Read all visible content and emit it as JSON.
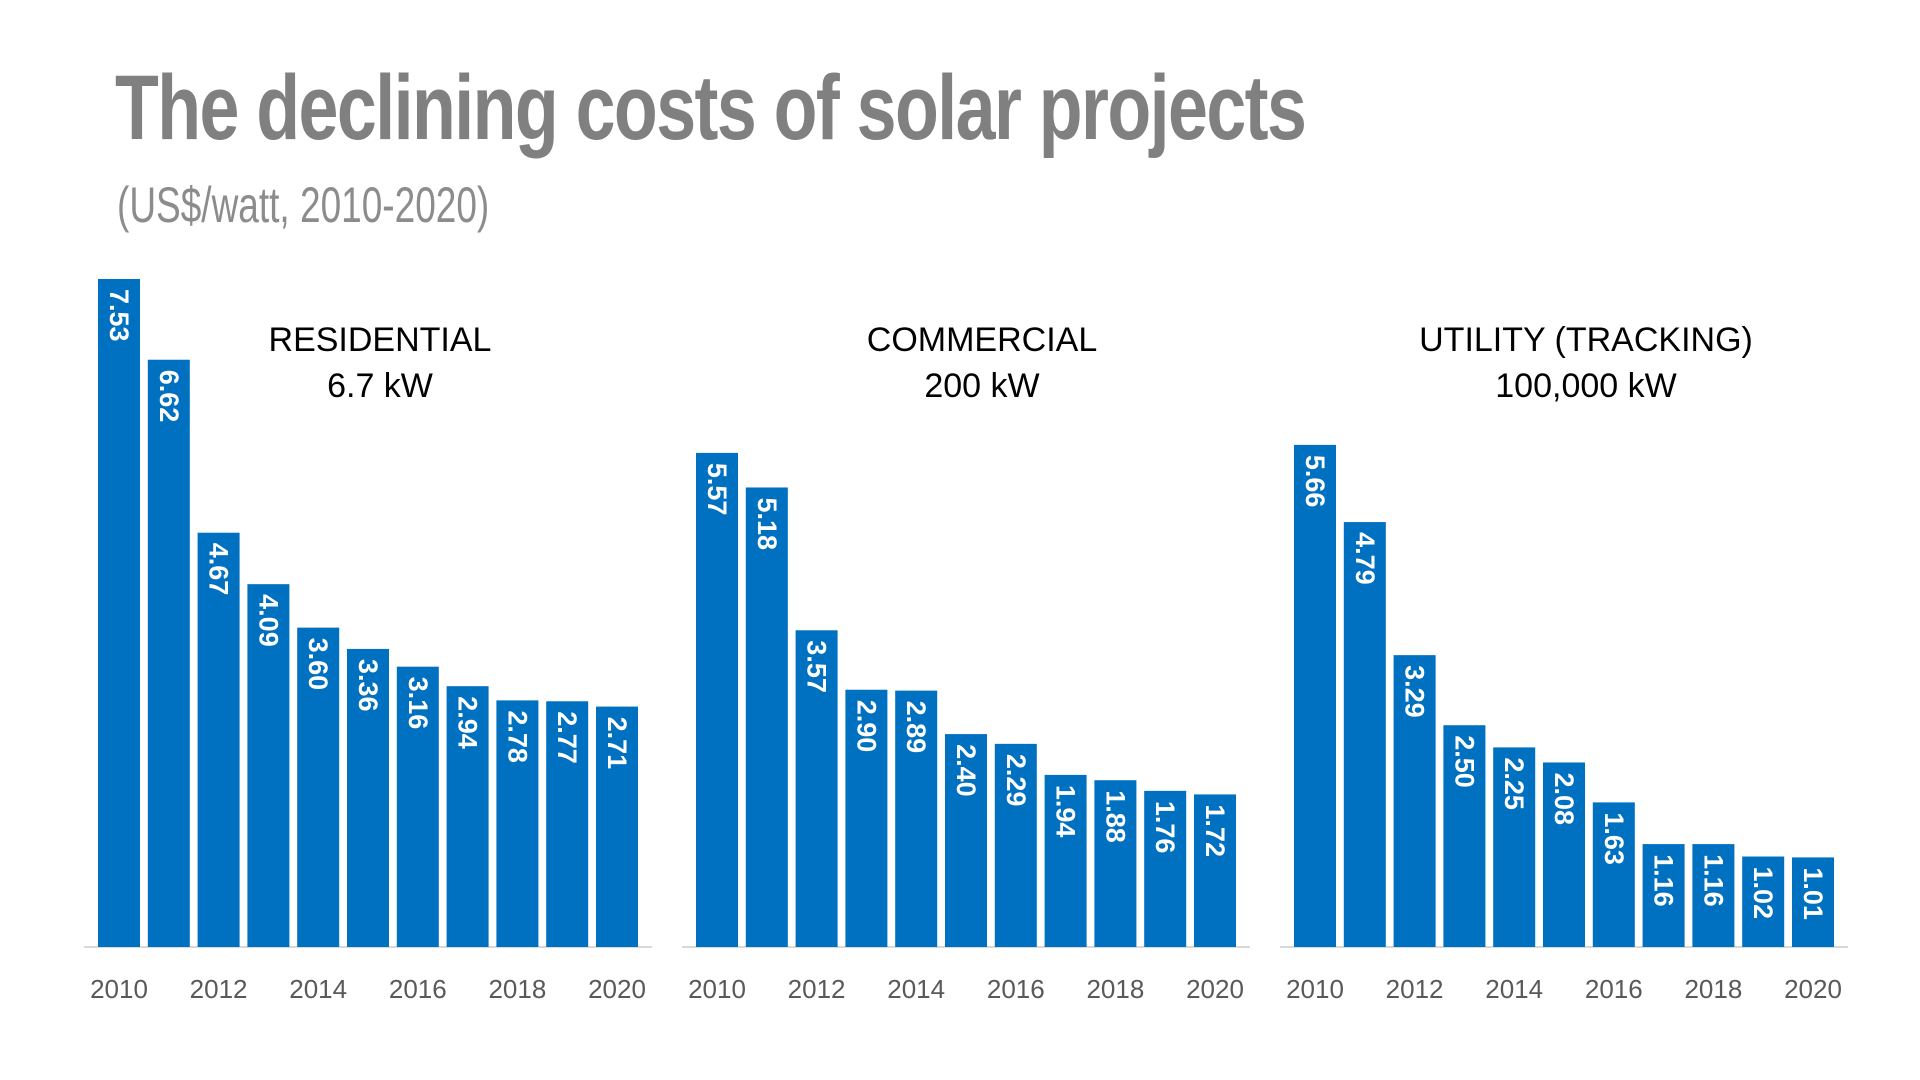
{
  "title": "The declining costs of solar projects",
  "subtitle": "(US$/watt, 2010-2020)",
  "colors": {
    "bar": "#0070C0",
    "bar_label": "#ffffff",
    "axis": "#d9d9d9",
    "tick": "#595959",
    "group_label": "#000000"
  },
  "chart_data": [
    {
      "type": "bar",
      "title": "RESIDENTIAL",
      "subtitle": "6.7 kW",
      "categories": [
        "2010",
        "2011",
        "2012",
        "2013",
        "2014",
        "2015",
        "2016",
        "2017",
        "2018",
        "2019",
        "2020"
      ],
      "values": [
        7.53,
        6.62,
        4.67,
        4.09,
        3.6,
        3.36,
        3.16,
        2.94,
        2.78,
        2.77,
        2.71
      ],
      "value_labels": [
        "7.53",
        "6.62",
        "4.67",
        "4.09",
        "3.60",
        "3.36",
        "3.16",
        "2.94",
        "2.78",
        "2.77",
        "2.71"
      ],
      "tick_labels": [
        "2010",
        "2012",
        "2014",
        "2016",
        "2018",
        "2020"
      ],
      "xlabel": "",
      "ylabel": "",
      "ylim": [
        0,
        7.53
      ],
      "grid": false
    },
    {
      "type": "bar",
      "title": "COMMERCIAL",
      "subtitle": "200 kW",
      "categories": [
        "2010",
        "2011",
        "2012",
        "2013",
        "2014",
        "2015",
        "2016",
        "2017",
        "2018",
        "2019",
        "2020"
      ],
      "values": [
        5.57,
        5.18,
        3.57,
        2.9,
        2.89,
        2.4,
        2.29,
        1.94,
        1.88,
        1.76,
        1.72
      ],
      "value_labels": [
        "5.57",
        "5.18",
        "3.57",
        "2.90",
        "2.89",
        "2.40",
        "2.29",
        "1.94",
        "1.88",
        "1.76",
        "1.72"
      ],
      "tick_labels": [
        "2010",
        "2012",
        "2014",
        "2016",
        "2018",
        "2020"
      ],
      "xlabel": "",
      "ylabel": "",
      "ylim": [
        0,
        7.53
      ],
      "grid": false
    },
    {
      "type": "bar",
      "title": "UTILITY (TRACKING)",
      "subtitle": "100,000 kW",
      "categories": [
        "2010",
        "2011",
        "2012",
        "2013",
        "2014",
        "2015",
        "2016",
        "2017",
        "2018",
        "2019",
        "2020"
      ],
      "values": [
        5.66,
        4.79,
        3.29,
        2.5,
        2.25,
        2.08,
        1.63,
        1.16,
        1.16,
        1.02,
        1.01
      ],
      "value_labels": [
        "5.66",
        "4.79",
        "3.29",
        "2.50",
        "2.25",
        "2.08",
        "1.63",
        "1.16",
        "1.16",
        "1.02",
        "1.01"
      ],
      "tick_labels": [
        "2010",
        "2012",
        "2014",
        "2016",
        "2018",
        "2020"
      ],
      "xlabel": "",
      "ylabel": "",
      "ylim": [
        0,
        7.53
      ],
      "grid": false
    }
  ]
}
